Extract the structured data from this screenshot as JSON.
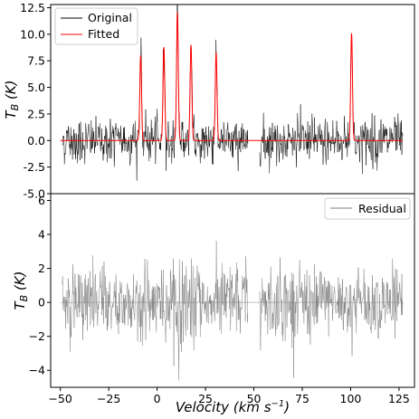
{
  "chart_data": [
    {
      "type": "line",
      "panel": "top",
      "ylabel": "T_B (K)",
      "xlim": [
        -55,
        133
      ],
      "ylim": [
        -5.0,
        12.8
      ],
      "yticks": [
        "-5.0",
        "-2.5",
        "0.0",
        "2.5",
        "5.0",
        "7.5",
        "10.0",
        "12.5"
      ],
      "ytick_values": [
        -5.0,
        -2.5,
        0.0,
        2.5,
        5.0,
        7.5,
        10.0,
        12.5
      ],
      "legend": {
        "placement": "top-left",
        "entries": [
          "Original",
          "Fitted"
        ]
      },
      "noise_segments": [
        [
          -49,
          47
        ],
        [
          53,
          127
        ]
      ],
      "noise_amplitude": 1.2,
      "series": [
        {
          "name": "Original",
          "color": "#000000",
          "peaks": [
            {
              "x": -8.5,
              "height": 8.0
            },
            {
              "x": 3.5,
              "height": 8.8
            },
            {
              "x": 10.5,
              "height": 12.3
            },
            {
              "x": 17.5,
              "height": 9.0
            },
            {
              "x": 30.5,
              "height": 8.4
            },
            {
              "x": 100.5,
              "height": 10.3
            }
          ]
        },
        {
          "name": "Fitted",
          "color": "#ff0000",
          "x": [
            -50,
            127
          ],
          "baseline": 0.0,
          "peaks": [
            {
              "x": -8.5,
              "height": 8.0
            },
            {
              "x": 3.5,
              "height": 8.8
            },
            {
              "x": 10.5,
              "height": 12.1
            },
            {
              "x": 17.5,
              "height": 9.0
            },
            {
              "x": 30.5,
              "height": 8.3
            },
            {
              "x": 100.5,
              "height": 10.1
            }
          ]
        }
      ]
    },
    {
      "type": "line",
      "panel": "bottom",
      "xlabel": "Velocity (km s^-1)",
      "ylabel": "T_B (K)",
      "xlim": [
        -55,
        133
      ],
      "ylim": [
        -5.0,
        6.4
      ],
      "xticks": [
        "−50",
        "−25",
        "0",
        "25",
        "50",
        "75",
        "100",
        "125"
      ],
      "xtick_values": [
        -50,
        -25,
        0,
        25,
        50,
        75,
        100,
        125
      ],
      "yticks": [
        "−4",
        "−2",
        "0",
        "2",
        "4",
        "6"
      ],
      "ytick_values": [
        -4,
        -2,
        0,
        2,
        4,
        6
      ],
      "legend": {
        "placement": "top-right",
        "entries": [
          "Residual"
        ]
      },
      "noise_segments": [
        [
          -49,
          47
        ],
        [
          53,
          127
        ]
      ],
      "noise_amplitude": 1.3,
      "series": [
        {
          "name": "Residual",
          "color": "#808080",
          "baseline": 0.0
        }
      ]
    }
  ]
}
